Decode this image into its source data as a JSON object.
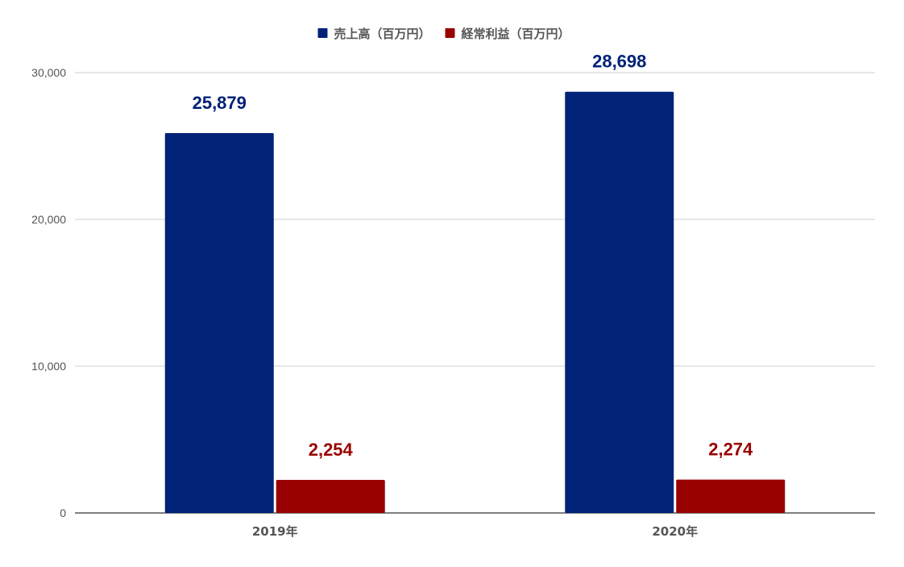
{
  "chart_data": {
    "type": "bar",
    "categories": [
      "2019年",
      "2020年"
    ],
    "series": [
      {
        "name": "売上高（百万円）",
        "values": [
          25879,
          28698
        ],
        "value_labels": [
          "25,879",
          "28,698"
        ],
        "color": "#002277"
      },
      {
        "name": "経常利益（百万円）",
        "values": [
          2254,
          2274
        ],
        "value_labels": [
          "2,254",
          "2,274"
        ],
        "color": "#990000"
      }
    ],
    "ylim": [
      0,
      30000
    ],
    "yticks": [
      0,
      10000,
      20000,
      30000
    ],
    "ytick_labels": [
      "0",
      "10,000",
      "20,000",
      "30,000"
    ],
    "grid": true,
    "legend_position": "top-center",
    "title": "",
    "xlabel": "",
    "ylabel": ""
  }
}
